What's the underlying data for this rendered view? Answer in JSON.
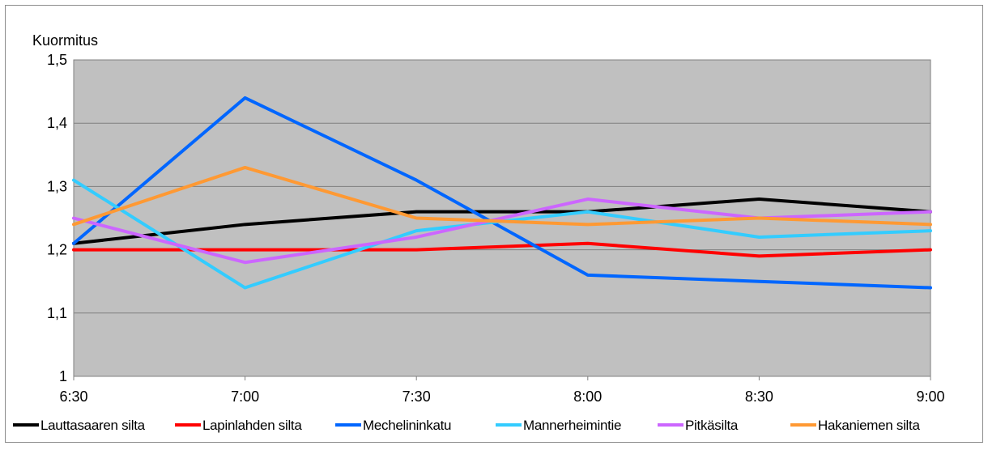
{
  "chart_data": {
    "type": "line",
    "ylabel": "Kuormitus",
    "categories": [
      "6:30",
      "7:00",
      "7:30",
      "8:00",
      "8:30",
      "9:00"
    ],
    "yticks": [
      "1",
      "1,1",
      "1,2",
      "1,3",
      "1,4",
      "1,5"
    ],
    "ylim": [
      1,
      1.5
    ],
    "grid": true,
    "legend_position": "bottom",
    "series": [
      {
        "name": "Lauttasaaren silta",
        "color": "#000000",
        "values": [
          1.21,
          1.24,
          1.26,
          1.26,
          1.28,
          1.26
        ]
      },
      {
        "name": "Lapinlahden silta",
        "color": "#ff0000",
        "values": [
          1.2,
          1.2,
          1.2,
          1.21,
          1.19,
          1.2
        ]
      },
      {
        "name": "Mechelininkatu",
        "color": "#0066ff",
        "values": [
          1.21,
          1.44,
          1.31,
          1.16,
          1.15,
          1.14
        ]
      },
      {
        "name": "Mannerheimintie",
        "color": "#33ccff",
        "values": [
          1.31,
          1.14,
          1.23,
          1.26,
          1.22,
          1.23
        ]
      },
      {
        "name": "Pitkäsilta",
        "color": "#cc66ff",
        "values": [
          1.25,
          1.18,
          1.22,
          1.28,
          1.25,
          1.26
        ]
      },
      {
        "name": "Hakaniemen silta",
        "color": "#ff9933",
        "values": [
          1.24,
          1.33,
          1.25,
          1.24,
          1.25,
          1.24
        ]
      }
    ]
  }
}
